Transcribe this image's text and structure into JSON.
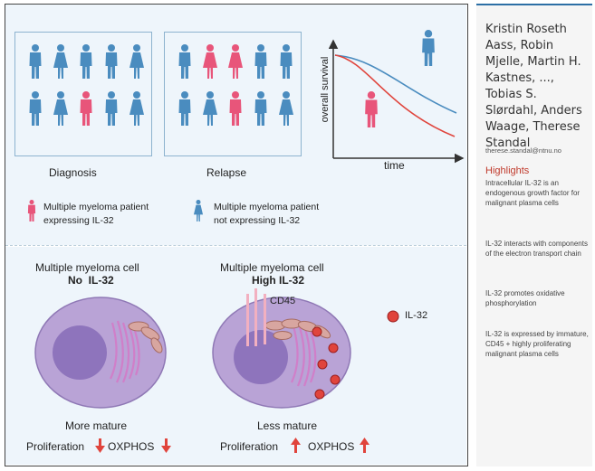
{
  "top": {
    "group1_label": "Diagnosis",
    "group2_label": "Relapse",
    "chart_ylabel": "overall survival",
    "chart_xlabel": "time",
    "legend_pink": "Multiple myeloma patient\nexpressing IL-32",
    "legend_blue": "Multiple myeloma patient\nnot expressing IL-32"
  },
  "bottom": {
    "left_title": "Multiple myeloma cell",
    "left_subtitle": "No  IL-32",
    "right_title": "Multiple myeloma cell",
    "right_subtitle": "High IL-32",
    "cd45_label": "CD45",
    "il32_legend": "IL-32",
    "left_caption": "More mature",
    "right_caption": "Less mature",
    "proliferation": "Proliferation",
    "oxphos": "OXPHOS"
  },
  "sidebar": {
    "authors": "Kristin Roseth Aass, Robin Mjelle, Martin H. Kastnes, ..., Tobias S. Slørdahl, Anders Waage, Therese Standal",
    "email": "therese.standal@ntnu.no",
    "highlights_title": "Highlights",
    "highlights": [
      "Intracellular IL-32 is an endogenous growth factor for malignant plasma cells",
      "IL-32 interacts with components of the electron transport chain",
      "IL-32 promotes oxidative phosphorylation",
      "IL-32 is expressed by immature, CD45 + highly proliferating malignant plasma cells"
    ]
  },
  "colors": {
    "blue": "#4a8cbf",
    "pink": "#e8557a",
    "red": "#e0443c",
    "cell": "#b9a3d6",
    "nucleus": "#8e74bc"
  }
}
